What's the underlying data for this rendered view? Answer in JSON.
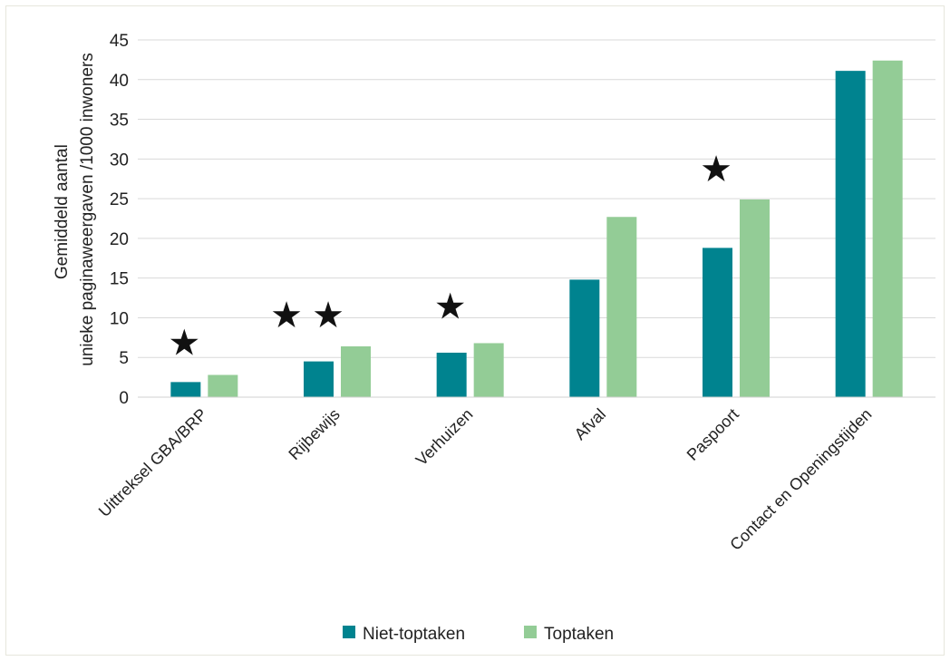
{
  "chart_data": {
    "type": "bar",
    "title": "",
    "xlabel": "",
    "ylabel": [
      "Gemiddeld aantal",
      "unieke paginaweergaven /1000 inwoners"
    ],
    "ylim": [
      0,
      45
    ],
    "yticks": [
      0,
      5,
      10,
      15,
      20,
      25,
      30,
      35,
      40,
      45
    ],
    "grid": true,
    "legend_position": "bottom",
    "categories": [
      "Uittreksel GBA/BRP",
      "Rijbewijs",
      "Verhuizen",
      "Afval",
      "Paspoort",
      "Contact en Openingstijden"
    ],
    "series": [
      {
        "name": "Niet-toptaken",
        "color": "#00838f",
        "values": [
          1.9,
          4.5,
          5.6,
          14.8,
          18.8,
          41.1
        ]
      },
      {
        "name": "Toptaken",
        "color": "#93cc96",
        "values": [
          2.8,
          6.4,
          6.8,
          22.7,
          24.9,
          42.4
        ]
      }
    ],
    "annotations": [
      {
        "category_index": 0,
        "symbol": "★",
        "count": 1,
        "y": 6.9
      },
      {
        "category_index": 1,
        "symbol": "★",
        "count": 2,
        "y": 10.4
      },
      {
        "category_index": 2,
        "symbol": "★",
        "count": 1,
        "y": 11.5
      },
      {
        "category_index": 4,
        "symbol": "★",
        "count": 1,
        "y": 28.8
      }
    ]
  }
}
